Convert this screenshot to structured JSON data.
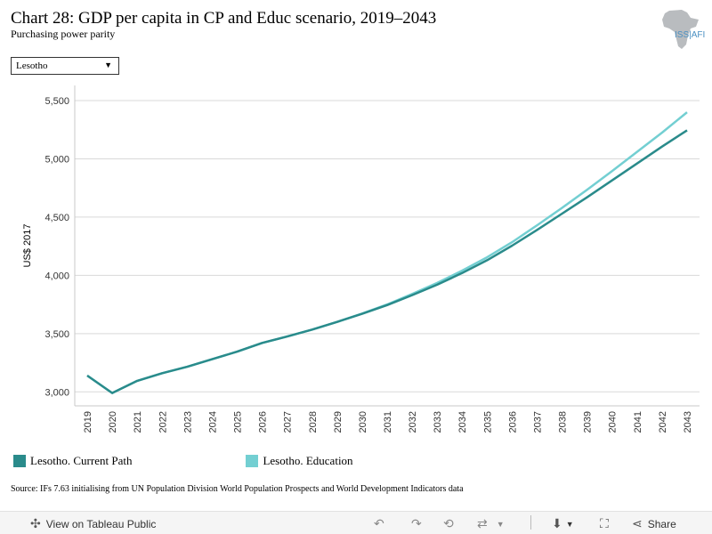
{
  "title": "Chart 28: GDP per capita in CP and Educ scenario, 2019–2043",
  "subtitle": "Purchasing power parity",
  "logo_text": "ISS|AFI",
  "dropdown": {
    "selected": "Lesotho"
  },
  "source": "Source: IFs 7.63 initialising from UN Population Division World Population Prospects and World Development Indicators data",
  "toolbar": {
    "view_label": "View on Tableau Public",
    "share_label": "Share"
  },
  "chart_data": {
    "type": "line",
    "title": "Chart 28: GDP per capita in CP and Educ scenario, 2019–2043",
    "subtitle": "Purchasing power parity",
    "ylabel": "US$ 2017",
    "xlabel": "",
    "ylim": [
      2880,
      5630
    ],
    "yticks": [
      "3,000",
      "3,500",
      "4,000",
      "4,500",
      "5,000",
      "5,500"
    ],
    "ytick_values": [
      3000,
      3500,
      4000,
      4500,
      5000,
      5500
    ],
    "x": [
      "2019",
      "2020",
      "2021",
      "2022",
      "2023",
      "2024",
      "2025",
      "2026",
      "2027",
      "2028",
      "2029",
      "2030",
      "2031",
      "2032",
      "2033",
      "2034",
      "2035",
      "2036",
      "2037",
      "2038",
      "2039",
      "2040",
      "2041",
      "2042",
      "2043"
    ],
    "grid": true,
    "legend_position": "bottom-left",
    "series": [
      {
        "name": "Lesotho. Current Path",
        "color": "#2a8b8b",
        "values": [
          3140,
          2990,
          3095,
          3160,
          3215,
          3280,
          3345,
          3420,
          3475,
          3535,
          3600,
          3670,
          3745,
          3830,
          3920,
          4020,
          4130,
          4255,
          4390,
          4530,
          4670,
          4815,
          4960,
          5105,
          5245
        ]
      },
      {
        "name": "Lesotho. Education",
        "color": "#73cfd2",
        "values": [
          3140,
          2990,
          3095,
          3160,
          3215,
          3280,
          3345,
          3420,
          3475,
          3535,
          3600,
          3672,
          3750,
          3840,
          3935,
          4040,
          4155,
          4285,
          4430,
          4580,
          4735,
          4895,
          5060,
          5225,
          5400
        ]
      }
    ]
  }
}
